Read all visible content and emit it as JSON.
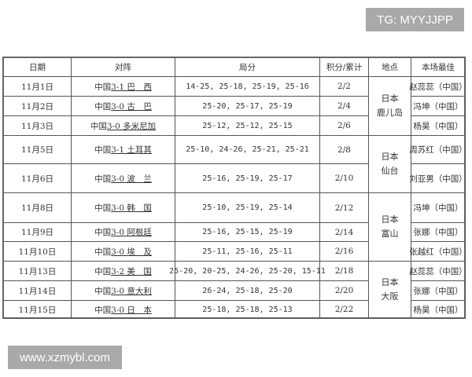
{
  "watermarks": {
    "top": "TG: MYYJJPP",
    "bottom": "www.xzmybl.com"
  },
  "headers": [
    "日期",
    "对阵",
    "局分",
    "积分/累计",
    "地点",
    "本场最佳"
  ],
  "rows": [
    {
      "date": "11月1日",
      "home": "中国",
      "result": "3-1 巴　西",
      "sets": "14-25, 25-18, 25-19, 25-16",
      "points": "2/2",
      "mvp": "赵蕊蕊（中国）"
    },
    {
      "date": "11月2日",
      "home": "中国",
      "result": "3-0 古　巴",
      "sets": "25-20, 25-17, 25-19",
      "points": "2/4",
      "mvp": "冯坤（中国）"
    },
    {
      "date": "11月3日",
      "home": "中国",
      "result": "3-0 多米尼加",
      "sets": "25-12, 25-12, 25-15",
      "points": "2/6",
      "mvp": "杨昊（中国）"
    },
    {
      "date": "11月5日",
      "home": "中国",
      "result": "3-1 土耳其",
      "sets": "25-10, 24-26, 25-21, 25-21",
      "points": "2/8",
      "mvp": "周苏红（中国）"
    },
    {
      "date": "11月6日",
      "home": "中国",
      "result": "3-0 波　兰",
      "sets": "25-16, 25-19, 25-17",
      "points": "2/10",
      "mvp": "刘亚男（中国）"
    },
    {
      "date": "11月8日",
      "home": "中国",
      "result": "3-0 韩　国",
      "sets": "25-10, 25-19, 25-14",
      "points": "2/12",
      "mvp": "冯坤（中国）"
    },
    {
      "date": "11月9日",
      "home": "中国",
      "result": "3-0 阿根廷",
      "sets": "25-16, 25-15, 25-19",
      "points": "2/14",
      "mvp": "张娜（中国）"
    },
    {
      "date": "11月10日",
      "home": "中国",
      "result": "3-0 埃　及",
      "sets": "25-11, 25-16, 25-11",
      "points": "2/16",
      "mvp": "张越红（中国）"
    },
    {
      "date": "11月13日",
      "home": "中国",
      "result": "3-2 美　国",
      "sets": "25-20, 20-25, 24-26, 25-20, 15-11",
      "points": "2/18",
      "mvp": "赵蕊蕊（中国）"
    },
    {
      "date": "11月14日",
      "home": "中国",
      "result": "3-0 意大利",
      "sets": "26-24, 25-18, 25-20",
      "points": "2/20",
      "mvp": "张娜（中国）"
    },
    {
      "date": "11月15日",
      "home": "中国",
      "result": "3-0 日　本",
      "sets": "25-18, 25-18, 25-13",
      "points": "2/22",
      "mvp": "杨昊（中国）"
    }
  ],
  "locations": [
    {
      "country": "日本",
      "city": "鹿儿岛"
    },
    {
      "country": "日本",
      "city": "仙台"
    },
    {
      "country": "日本",
      "city": "富山"
    },
    {
      "country": "日本",
      "city": "大阪"
    }
  ]
}
